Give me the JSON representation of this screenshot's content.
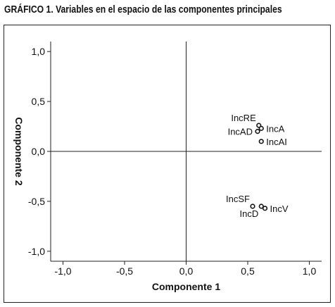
{
  "title": "GRÁFICO 1. Variables en el espacio de las componentes principales",
  "chart_data": {
    "type": "scatter",
    "xlabel": "Componente 1",
    "ylabel": "Componente 2",
    "xlim": [
      -1.1,
      1.1
    ],
    "ylim": [
      -1.1,
      1.1
    ],
    "xticks": [
      -1.0,
      -0.5,
      0.0,
      0.5,
      1.0
    ],
    "yticks": [
      -1.0,
      -0.5,
      0.0,
      0.5,
      1.0
    ],
    "xtick_labels": [
      "-1,0",
      "-0,5",
      "0,0",
      "0,5",
      "1,0"
    ],
    "ytick_labels": [
      "-1,0",
      "-0,5",
      "0,0",
      "0,5",
      "1,0"
    ],
    "reference_lines": {
      "x": 0,
      "y": 0
    },
    "grid": false,
    "points": [
      {
        "label": "IncRE",
        "x": 0.59,
        "y": 0.26,
        "label_pos": "above-left"
      },
      {
        "label": "IncA",
        "x": 0.61,
        "y": 0.23,
        "label_pos": "right"
      },
      {
        "label": "IncAD",
        "x": 0.58,
        "y": 0.2,
        "label_pos": "left"
      },
      {
        "label": "IncAI",
        "x": 0.61,
        "y": 0.1,
        "label_pos": "right"
      },
      {
        "label": "IncSF",
        "x": 0.54,
        "y": -0.55,
        "label_pos": "above-left"
      },
      {
        "label": "IncD",
        "x": 0.61,
        "y": -0.55,
        "label_pos": "below-left"
      },
      {
        "label": "IncV",
        "x": 0.64,
        "y": -0.57,
        "label_pos": "right"
      }
    ]
  }
}
